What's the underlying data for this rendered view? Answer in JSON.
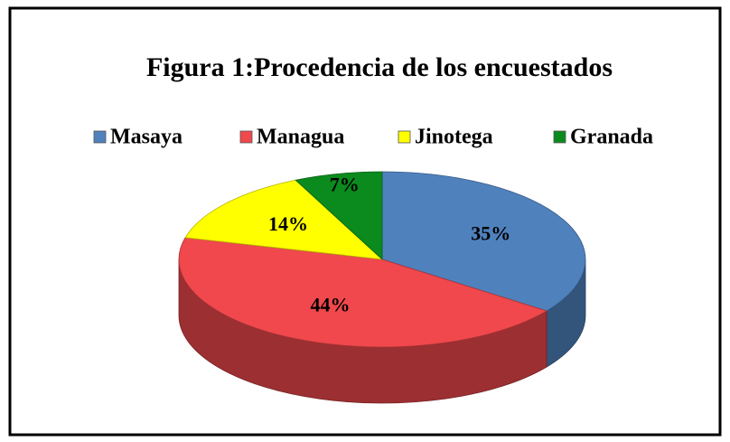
{
  "chart_data": {
    "type": "pie",
    "title": "Figura 1:Procedencia de los encuestados",
    "categories": [
      "Masaya",
      "Managua",
      "Jinotega",
      "Granada"
    ],
    "values": [
      35,
      44,
      14,
      7
    ],
    "value_labels": [
      "35%",
      "44%",
      "14%",
      "7%"
    ],
    "colors": [
      "#4f81bd",
      "#f0484c",
      "#ffff00",
      "#0b8a1e"
    ],
    "legend": "top"
  }
}
